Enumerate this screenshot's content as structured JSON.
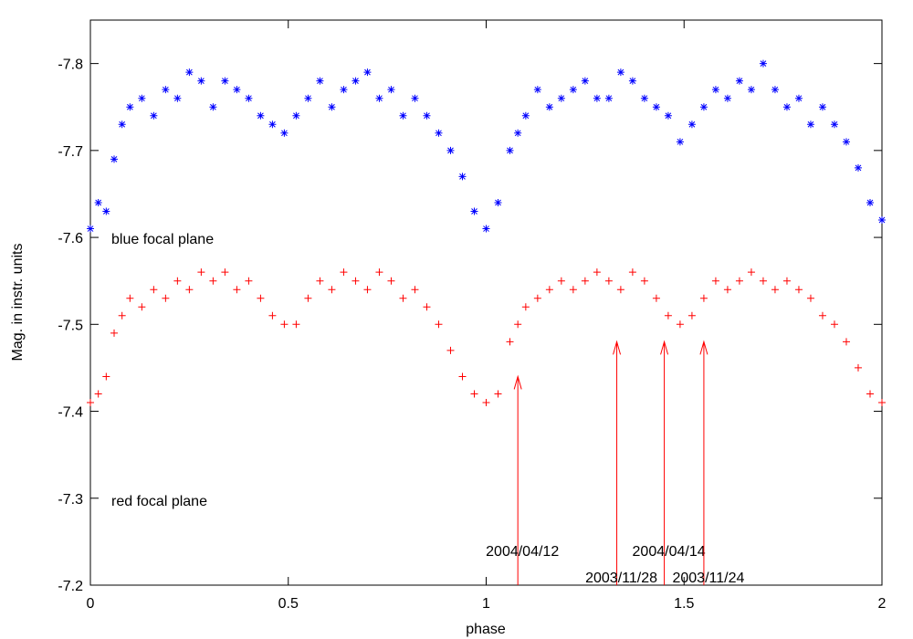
{
  "chart_data": {
    "type": "scatter",
    "x_label": "phase",
    "y_label": "Mag. in instr. units",
    "xlim": [
      0,
      2
    ],
    "ylim": [
      -7.2,
      -7.85
    ],
    "xticks": [
      0,
      0.5,
      1,
      1.5,
      2
    ],
    "yticks": [
      -7.2,
      -7.3,
      -7.4,
      -7.5,
      -7.6,
      -7.7,
      -7.8
    ],
    "x": [
      0,
      0.02,
      0.04,
      0.06,
      0.08,
      0.1,
      0.13,
      0.16,
      0.19,
      0.22,
      0.25,
      0.28,
      0.31,
      0.34,
      0.37,
      0.4,
      0.43,
      0.46,
      0.49,
      0.52,
      0.55,
      0.58,
      0.61,
      0.64,
      0.67,
      0.7,
      0.73,
      0.76,
      0.79,
      0.82,
      0.85,
      0.88,
      0.91,
      0.94,
      0.97,
      1,
      1.03,
      1.06,
      1.08,
      1.1,
      1.13,
      1.16,
      1.19,
      1.22,
      1.25,
      1.28,
      1.31,
      1.34,
      1.37,
      1.4,
      1.43,
      1.46,
      1.49,
      1.52,
      1.55,
      1.58,
      1.61,
      1.64,
      1.67,
      1.7,
      1.73,
      1.76,
      1.79,
      1.82,
      1.85,
      1.88,
      1.91,
      1.94,
      1.97,
      2
    ],
    "series": [
      {
        "name": "blue focal plane",
        "color": "#0000ff",
        "marker": "star",
        "values": [
          -7.61,
          -7.64,
          -7.63,
          -7.69,
          -7.73,
          -7.75,
          -7.76,
          -7.74,
          -7.77,
          -7.76,
          -7.79,
          -7.78,
          -7.75,
          -7.78,
          -7.77,
          -7.76,
          -7.74,
          -7.73,
          -7.72,
          -7.74,
          -7.76,
          -7.78,
          -7.75,
          -7.77,
          -7.78,
          -7.79,
          -7.76,
          -7.77,
          -7.74,
          -7.76,
          -7.74,
          -7.72,
          -7.7,
          -7.67,
          -7.63,
          -7.61,
          -7.64,
          -7.7,
          -7.72,
          -7.74,
          -7.77,
          -7.75,
          -7.76,
          -7.77,
          -7.78,
          -7.76,
          -7.76,
          -7.79,
          -7.78,
          -7.76,
          -7.75,
          -7.74,
          -7.71,
          -7.73,
          -7.75,
          -7.77,
          -7.76,
          -7.78,
          -7.77,
          -7.8,
          -7.77,
          -7.75,
          -7.76,
          -7.73,
          -7.75,
          -7.73,
          -7.71,
          -7.68,
          -7.64,
          -7.62
        ]
      },
      {
        "name": "red focal plane",
        "color": "#ff0000",
        "marker": "plus",
        "values": [
          -7.41,
          -7.42,
          -7.44,
          -7.49,
          -7.51,
          -7.53,
          -7.52,
          -7.54,
          -7.53,
          -7.55,
          -7.54,
          -7.56,
          -7.55,
          -7.56,
          -7.54,
          -7.55,
          -7.53,
          -7.51,
          -7.5,
          -7.5,
          -7.53,
          -7.55,
          -7.54,
          -7.56,
          -7.55,
          -7.54,
          -7.56,
          -7.55,
          -7.53,
          -7.54,
          -7.52,
          -7.5,
          -7.47,
          -7.44,
          -7.42,
          -7.41,
          -7.42,
          -7.48,
          -7.5,
          -7.52,
          -7.53,
          -7.54,
          -7.55,
          -7.54,
          -7.55,
          -7.56,
          -7.55,
          -7.54,
          -7.56,
          -7.55,
          -7.53,
          -7.51,
          -7.5,
          -7.51,
          -7.53,
          -7.55,
          -7.54,
          -7.55,
          -7.56,
          -7.55,
          -7.54,
          -7.55,
          -7.54,
          -7.53,
          -7.51,
          -7.5,
          -7.48,
          -7.45,
          -7.42,
          -7.41
        ]
      }
    ],
    "annotations": [
      {
        "text": "2004/04/12",
        "x": 1.08,
        "y": -7.44
      },
      {
        "text": "2003/11/28",
        "x": 1.33,
        "y": -7.48
      },
      {
        "text": "2004/04/14",
        "x": 1.45,
        "y": -7.48
      },
      {
        "text": "2003/11/24",
        "x": 1.55,
        "y": -7.48
      }
    ]
  }
}
